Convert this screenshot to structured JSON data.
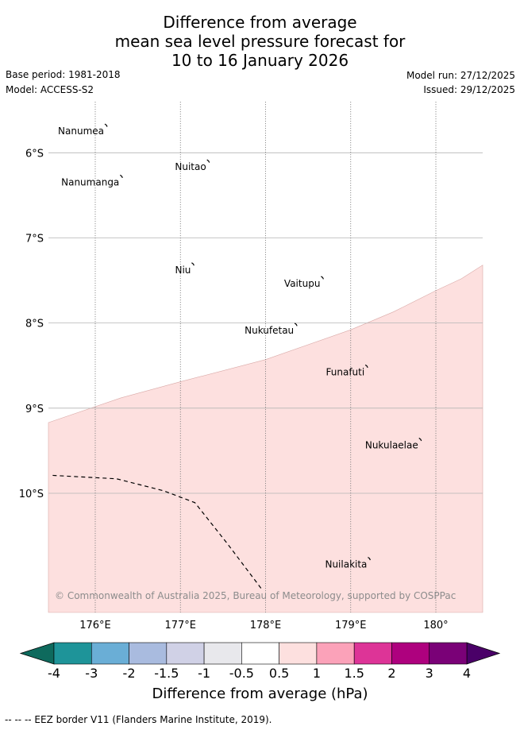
{
  "title": {
    "line1": "Difference from average",
    "line2": "mean sea level pressure forecast for",
    "line3": "10 to 16 January 2026"
  },
  "meta": {
    "base_period": "Base period: 1981-2018",
    "model": "Model: ACCESS-S2",
    "model_run": "Model run: 27/12/2025",
    "issued": "Issued: 29/12/2025"
  },
  "map": {
    "lon_range": [
      175.45,
      180.55
    ],
    "lat_range": [
      -11.4,
      -5.4
    ],
    "lon_ticks": [
      {
        "value": 176,
        "label": "176°E"
      },
      {
        "value": 177,
        "label": "177°E"
      },
      {
        "value": 178,
        "label": "178°E"
      },
      {
        "value": 179,
        "label": "179°E"
      },
      {
        "value": 180,
        "label": "180°"
      }
    ],
    "lat_ticks": [
      {
        "value": -6,
        "label": "6°S"
      },
      {
        "value": -7,
        "label": "7°S"
      },
      {
        "value": -8,
        "label": "8°S"
      },
      {
        "value": -9,
        "label": "9°S"
      },
      {
        "value": -10,
        "label": "10°S"
      }
    ],
    "places": [
      {
        "name": "Nanumea",
        "lon": 176.14,
        "lat": -5.69
      },
      {
        "name": "Nuitao",
        "lon": 177.34,
        "lat": -6.11
      },
      {
        "name": "Nanumanga",
        "lon": 176.32,
        "lat": -6.29
      },
      {
        "name": "Niu",
        "lon": 177.16,
        "lat": -7.32
      },
      {
        "name": "Vaitupu",
        "lon": 178.68,
        "lat": -7.48
      },
      {
        "name": "Nukufetau",
        "lon": 178.37,
        "lat": -8.03
      },
      {
        "name": "Funafuti",
        "lon": 179.2,
        "lat": -8.52
      },
      {
        "name": "Nukulaelae",
        "lon": 179.83,
        "lat": -9.38
      },
      {
        "name": "Nuilakita",
        "lon": 179.23,
        "lat": -10.78
      }
    ],
    "shaded_region": {
      "color": "#fde0df",
      "category": "0.5 to 1",
      "boundary": [
        {
          "lon": 175.45,
          "lat": -9.17
        },
        {
          "lon": 176.3,
          "lat": -8.88
        },
        {
          "lon": 177.0,
          "lat": -8.69
        },
        {
          "lon": 178.0,
          "lat": -8.43
        },
        {
          "lon": 179.0,
          "lat": -8.08
        },
        {
          "lon": 179.5,
          "lat": -7.87
        },
        {
          "lon": 180.0,
          "lat": -7.62
        },
        {
          "lon": 180.3,
          "lat": -7.48
        },
        {
          "lon": 180.55,
          "lat": -7.32
        }
      ]
    },
    "eez_border": [
      {
        "lon": 175.5,
        "lat": -9.79
      },
      {
        "lon": 176.25,
        "lat": -9.83
      },
      {
        "lon": 176.8,
        "lat": -9.97
      },
      {
        "lon": 177.17,
        "lat": -10.11
      },
      {
        "lon": 177.55,
        "lat": -10.59
      },
      {
        "lon": 177.95,
        "lat": -11.12
      }
    ],
    "copyright": "© Commonwealth of Australia 2025, Bureau of Meteorology, supported by COSPPac"
  },
  "colorbar": {
    "title": "Difference from average (hPa)",
    "ticks": [
      "-4",
      "-3",
      "-2",
      "-1.5",
      "-1",
      "-0.5",
      "0.5",
      "1",
      "1.5",
      "2",
      "3",
      "4"
    ],
    "under_color": "#0e6a5d",
    "over_color": "#4a0068",
    "colors": [
      "#1e9499",
      "#6aaed6",
      "#a9bbdf",
      "#d0d1e6",
      "#e8e8ec",
      "#ffffff",
      "#fde0df",
      "#fba2b9",
      "#dd3497",
      "#ae017e",
      "#7a0177"
    ]
  },
  "footer": "-- -- -- EEZ border V11 (Flanders Marine Institute, 2019)."
}
